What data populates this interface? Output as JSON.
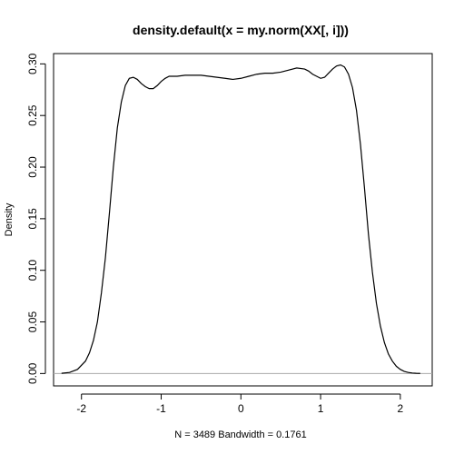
{
  "chart_data": {
    "type": "line",
    "title": "density.default(x = my.norm(XX[, i]))",
    "xlabel": "N = 3489   Bandwidth = 0.1761",
    "ylabel": "Density",
    "xlim": [
      -2.35,
      2.4
    ],
    "ylim": [
      -0.012,
      0.31
    ],
    "x_ticks": [
      -2,
      -1,
      0,
      1,
      2
    ],
    "y_ticks": [
      0.0,
      0.05,
      0.1,
      0.15,
      0.2,
      0.25,
      0.3
    ],
    "x_tick_labels": [
      "-2",
      "-1",
      "0",
      "1",
      "2"
    ],
    "y_tick_labels": [
      "0.00",
      "0.05",
      "0.10",
      "0.15",
      "0.20",
      "0.25",
      "0.30"
    ],
    "baseline": 0,
    "grid": false,
    "series": [
      {
        "color": "#000000",
        "x": [
          -2.25,
          -2.15,
          -2.05,
          -1.95,
          -1.9,
          -1.85,
          -1.8,
          -1.75,
          -1.7,
          -1.65,
          -1.6,
          -1.55,
          -1.5,
          -1.45,
          -1.4,
          -1.35,
          -1.3,
          -1.25,
          -1.2,
          -1.15,
          -1.1,
          -1.05,
          -1.0,
          -0.95,
          -0.9,
          -0.85,
          -0.8,
          -0.7,
          -0.6,
          -0.5,
          -0.4,
          -0.3,
          -0.2,
          -0.1,
          0.0,
          0.1,
          0.2,
          0.3,
          0.4,
          0.5,
          0.6,
          0.7,
          0.8,
          0.85,
          0.9,
          0.95,
          1.0,
          1.05,
          1.1,
          1.15,
          1.2,
          1.25,
          1.3,
          1.35,
          1.4,
          1.45,
          1.5,
          1.55,
          1.6,
          1.65,
          1.7,
          1.75,
          1.8,
          1.85,
          1.9,
          1.95,
          2.0,
          2.05,
          2.1,
          2.15,
          2.2,
          2.25
        ],
        "y": [
          0.0002,
          0.001,
          0.004,
          0.012,
          0.02,
          0.032,
          0.05,
          0.078,
          0.112,
          0.155,
          0.2,
          0.238,
          0.263,
          0.279,
          0.286,
          0.287,
          0.285,
          0.281,
          0.278,
          0.276,
          0.276,
          0.279,
          0.283,
          0.286,
          0.288,
          0.288,
          0.288,
          0.289,
          0.289,
          0.289,
          0.288,
          0.287,
          0.286,
          0.285,
          0.286,
          0.288,
          0.29,
          0.291,
          0.291,
          0.292,
          0.294,
          0.296,
          0.295,
          0.293,
          0.29,
          0.288,
          0.286,
          0.287,
          0.291,
          0.295,
          0.298,
          0.299,
          0.297,
          0.29,
          0.277,
          0.255,
          0.222,
          0.18,
          0.135,
          0.098,
          0.068,
          0.046,
          0.03,
          0.019,
          0.012,
          0.007,
          0.004,
          0.002,
          0.001,
          0.0005,
          0.0002,
          0.0001
        ]
      }
    ]
  }
}
